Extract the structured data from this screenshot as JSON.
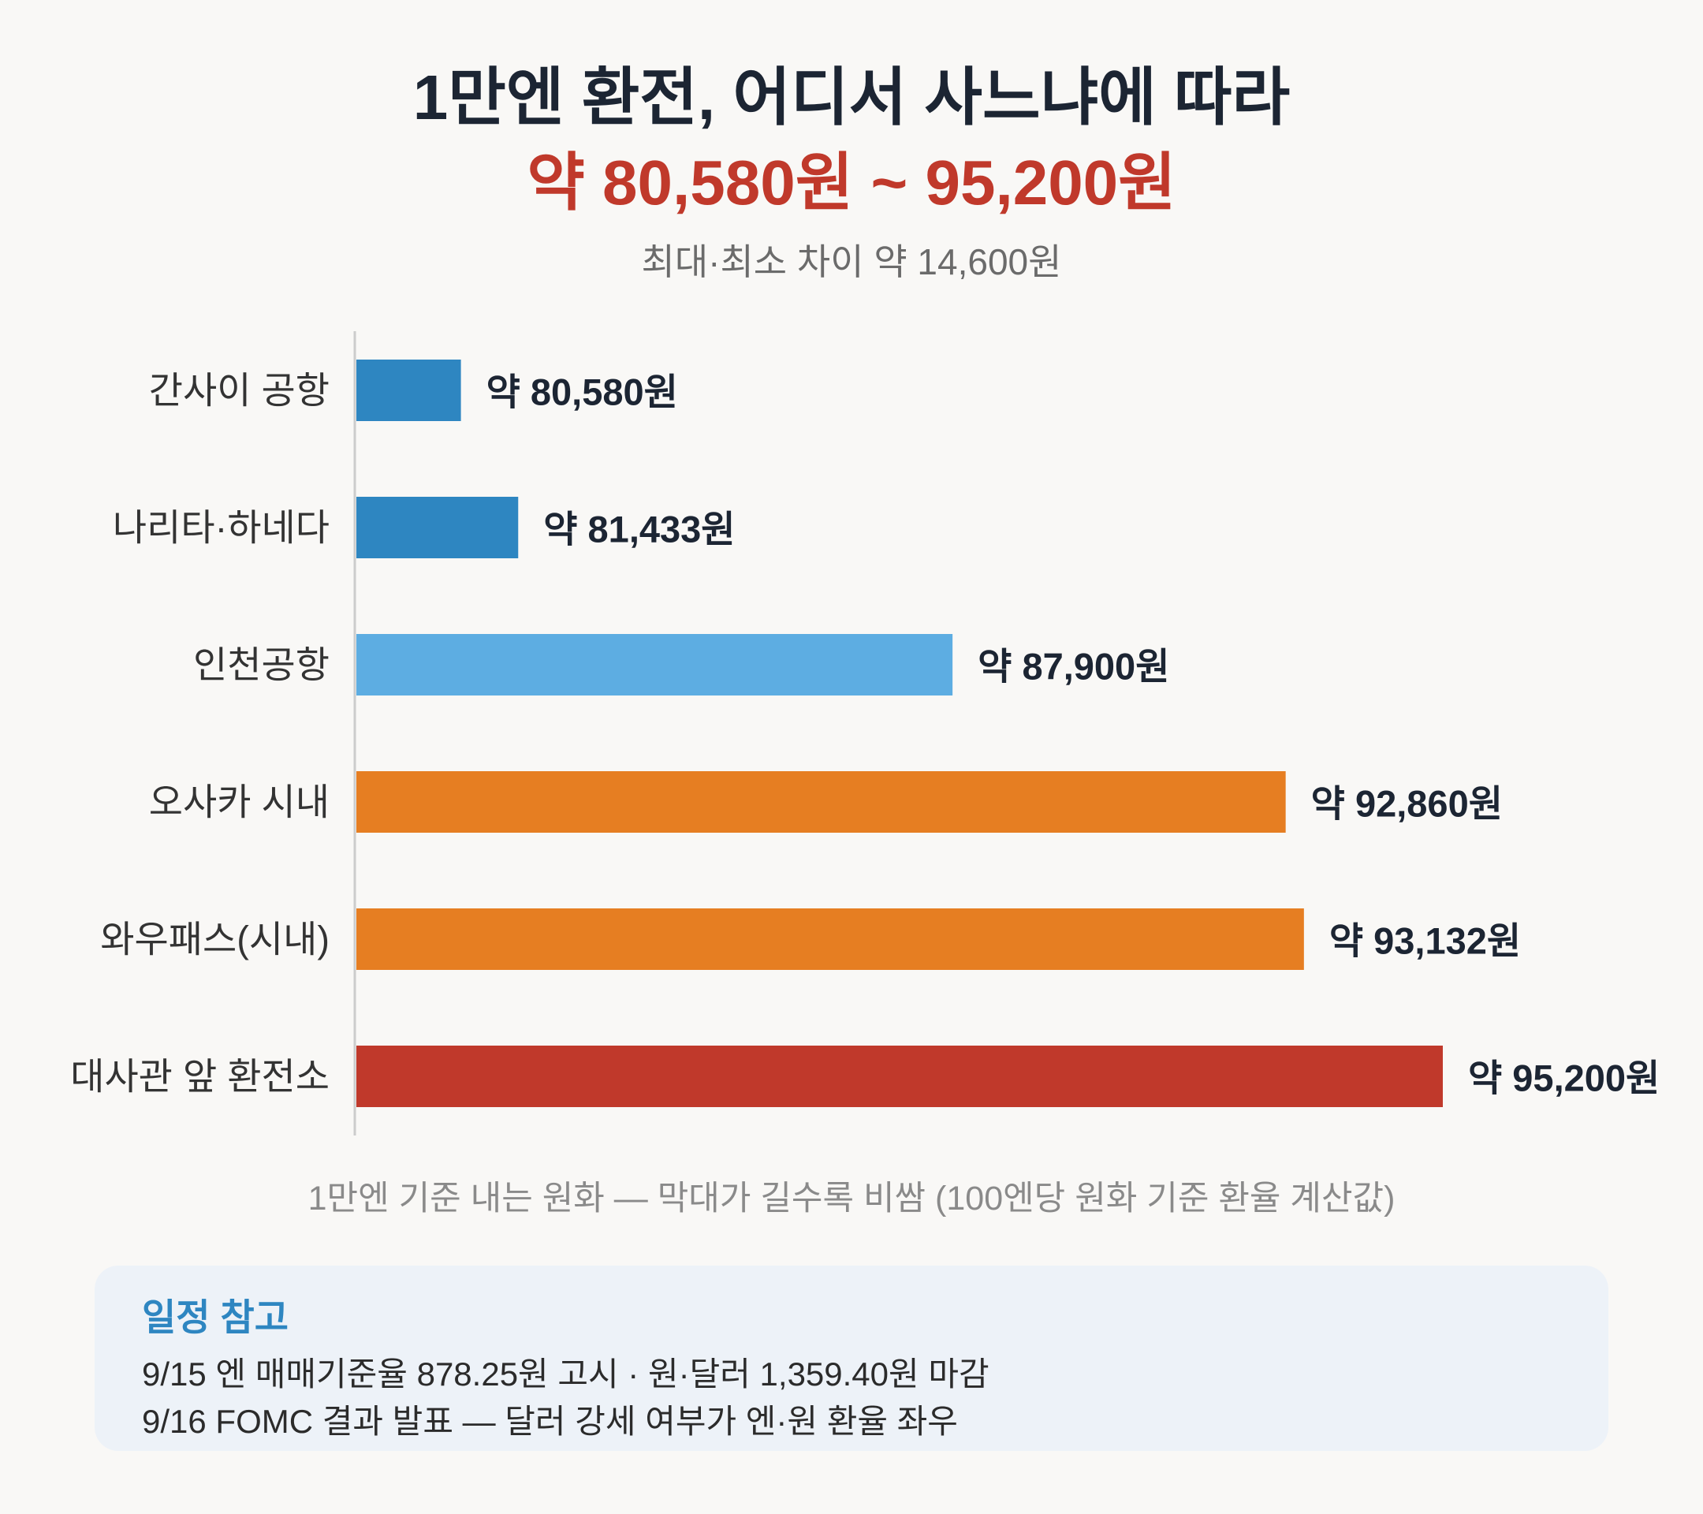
{
  "title": "1만엔 환전, 어디서 사느냐에 따라",
  "subtitle": "약 80,580원 ~ 95,200원",
  "caption": "최대·최소 차이 약 14,600원",
  "note": "1만엔 기준 내는 원화 — 막대가 길수록 비쌈 (100엔당 원화 기준 환율 계산값)",
  "info": {
    "title": "일정 참고",
    "lines": [
      "9/15 엔 매매기준율 878.25원 고시 · 원·달러 1,359.40원 마감",
      "9/16 FOMC 결과 발표 — 달러 강세 여부가 엔·원 환율 좌우"
    ]
  },
  "colors": {
    "blue": "#2e86c1",
    "light_blue": "#5dade2",
    "orange": "#e67e22",
    "red": "#c0392b",
    "axis": "#cccccc",
    "category_text": "#333333",
    "value_text": "#1c2533"
  },
  "chart_data": {
    "type": "bar",
    "orientation": "horizontal",
    "categories": [
      "간사이 공항",
      "나리타·하네다",
      "인천공항",
      "오사카 시내",
      "와우패스(시내)",
      "대사관 앞 환전소"
    ],
    "values": [
      80580,
      81433,
      87900,
      92860,
      93132,
      95200
    ],
    "value_labels": [
      "약 80,580원",
      "약 81,433원",
      "약 87,900원",
      "약 92,860원",
      "약 93,132원",
      "약 95,200원"
    ],
    "bar_colors": [
      "#2e86c1",
      "#2e86c1",
      "#5dade2",
      "#e67e22",
      "#e67e22",
      "#c0392b"
    ],
    "xlim": [
      79000,
      95200
    ],
    "xlabel": "",
    "ylabel": "",
    "grid": false,
    "legend": false
  }
}
